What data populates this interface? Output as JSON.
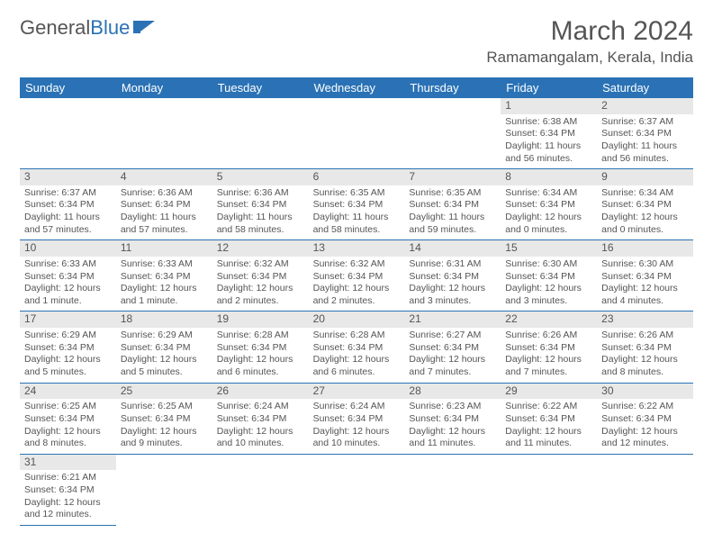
{
  "logo": {
    "text1": "General",
    "text2": "Blue"
  },
  "title": "March 2024",
  "location": "Ramamangalam, Kerala, India",
  "weekdays": [
    "Sunday",
    "Monday",
    "Tuesday",
    "Wednesday",
    "Thursday",
    "Friday",
    "Saturday"
  ],
  "colors": {
    "header_bg": "#2a72b5",
    "daynum_bg": "#e8e8e8",
    "border": "#2a72b5",
    "text": "#555555"
  },
  "layout": {
    "columns": 7,
    "rows": 6,
    "leading_blanks": 5
  },
  "days": [
    {
      "n": 1,
      "sunrise": "6:38 AM",
      "sunset": "6:34 PM",
      "daylight": "11 hours and 56 minutes."
    },
    {
      "n": 2,
      "sunrise": "6:37 AM",
      "sunset": "6:34 PM",
      "daylight": "11 hours and 56 minutes."
    },
    {
      "n": 3,
      "sunrise": "6:37 AM",
      "sunset": "6:34 PM",
      "daylight": "11 hours and 57 minutes."
    },
    {
      "n": 4,
      "sunrise": "6:36 AM",
      "sunset": "6:34 PM",
      "daylight": "11 hours and 57 minutes."
    },
    {
      "n": 5,
      "sunrise": "6:36 AM",
      "sunset": "6:34 PM",
      "daylight": "11 hours and 58 minutes."
    },
    {
      "n": 6,
      "sunrise": "6:35 AM",
      "sunset": "6:34 PM",
      "daylight": "11 hours and 58 minutes."
    },
    {
      "n": 7,
      "sunrise": "6:35 AM",
      "sunset": "6:34 PM",
      "daylight": "11 hours and 59 minutes."
    },
    {
      "n": 8,
      "sunrise": "6:34 AM",
      "sunset": "6:34 PM",
      "daylight": "12 hours and 0 minutes."
    },
    {
      "n": 9,
      "sunrise": "6:34 AM",
      "sunset": "6:34 PM",
      "daylight": "12 hours and 0 minutes."
    },
    {
      "n": 10,
      "sunrise": "6:33 AM",
      "sunset": "6:34 PM",
      "daylight": "12 hours and 1 minute."
    },
    {
      "n": 11,
      "sunrise": "6:33 AM",
      "sunset": "6:34 PM",
      "daylight": "12 hours and 1 minute."
    },
    {
      "n": 12,
      "sunrise": "6:32 AM",
      "sunset": "6:34 PM",
      "daylight": "12 hours and 2 minutes."
    },
    {
      "n": 13,
      "sunrise": "6:32 AM",
      "sunset": "6:34 PM",
      "daylight": "12 hours and 2 minutes."
    },
    {
      "n": 14,
      "sunrise": "6:31 AM",
      "sunset": "6:34 PM",
      "daylight": "12 hours and 3 minutes."
    },
    {
      "n": 15,
      "sunrise": "6:30 AM",
      "sunset": "6:34 PM",
      "daylight": "12 hours and 3 minutes."
    },
    {
      "n": 16,
      "sunrise": "6:30 AM",
      "sunset": "6:34 PM",
      "daylight": "12 hours and 4 minutes."
    },
    {
      "n": 17,
      "sunrise": "6:29 AM",
      "sunset": "6:34 PM",
      "daylight": "12 hours and 5 minutes."
    },
    {
      "n": 18,
      "sunrise": "6:29 AM",
      "sunset": "6:34 PM",
      "daylight": "12 hours and 5 minutes."
    },
    {
      "n": 19,
      "sunrise": "6:28 AM",
      "sunset": "6:34 PM",
      "daylight": "12 hours and 6 minutes."
    },
    {
      "n": 20,
      "sunrise": "6:28 AM",
      "sunset": "6:34 PM",
      "daylight": "12 hours and 6 minutes."
    },
    {
      "n": 21,
      "sunrise": "6:27 AM",
      "sunset": "6:34 PM",
      "daylight": "12 hours and 7 minutes."
    },
    {
      "n": 22,
      "sunrise": "6:26 AM",
      "sunset": "6:34 PM",
      "daylight": "12 hours and 7 minutes."
    },
    {
      "n": 23,
      "sunrise": "6:26 AM",
      "sunset": "6:34 PM",
      "daylight": "12 hours and 8 minutes."
    },
    {
      "n": 24,
      "sunrise": "6:25 AM",
      "sunset": "6:34 PM",
      "daylight": "12 hours and 8 minutes."
    },
    {
      "n": 25,
      "sunrise": "6:25 AM",
      "sunset": "6:34 PM",
      "daylight": "12 hours and 9 minutes."
    },
    {
      "n": 26,
      "sunrise": "6:24 AM",
      "sunset": "6:34 PM",
      "daylight": "12 hours and 10 minutes."
    },
    {
      "n": 27,
      "sunrise": "6:24 AM",
      "sunset": "6:34 PM",
      "daylight": "12 hours and 10 minutes."
    },
    {
      "n": 28,
      "sunrise": "6:23 AM",
      "sunset": "6:34 PM",
      "daylight": "12 hours and 11 minutes."
    },
    {
      "n": 29,
      "sunrise": "6:22 AM",
      "sunset": "6:34 PM",
      "daylight": "12 hours and 11 minutes."
    },
    {
      "n": 30,
      "sunrise": "6:22 AM",
      "sunset": "6:34 PM",
      "daylight": "12 hours and 12 minutes."
    },
    {
      "n": 31,
      "sunrise": "6:21 AM",
      "sunset": "6:34 PM",
      "daylight": "12 hours and 12 minutes."
    }
  ],
  "labels": {
    "sunrise": "Sunrise: ",
    "sunset": "Sunset: ",
    "daylight": "Daylight: "
  }
}
